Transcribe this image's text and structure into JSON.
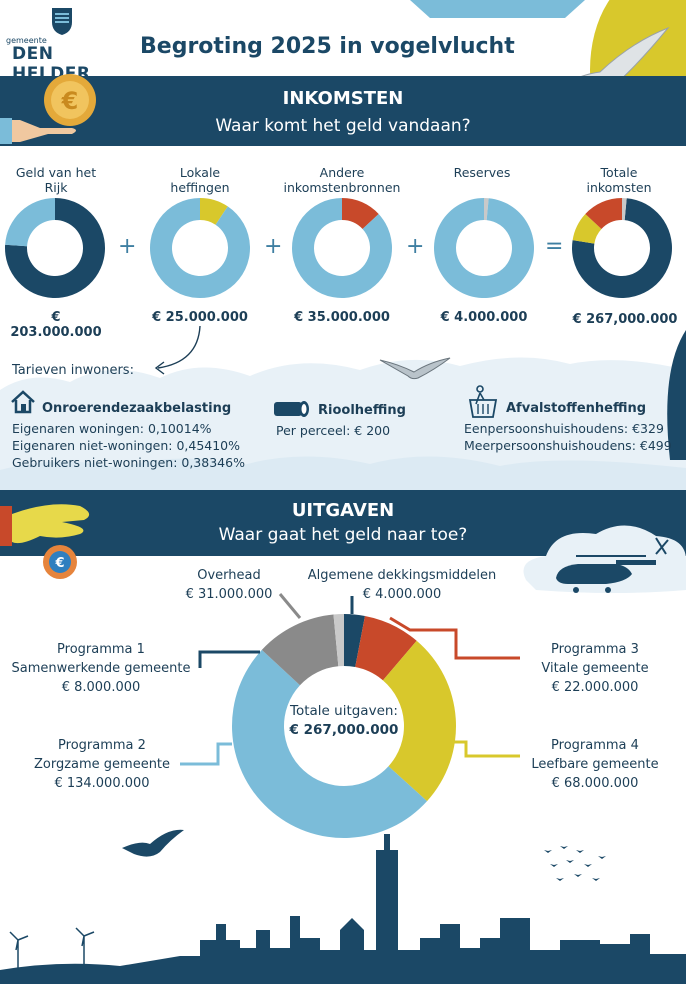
{
  "header": {
    "logo_small": "gemeente",
    "logo_big": "DEN HELDER",
    "title": "Begroting 2025 in vogelvlucht"
  },
  "income": {
    "heading": "INKOMSTEN",
    "subheading": "Waar komt het geld vandaan?",
    "items": [
      {
        "label": "Geld van het Rijk",
        "amount": "€ 203.000.000"
      },
      {
        "label": "Lokale heffingen",
        "amount": "€ 25.000.000"
      },
      {
        "label": "Andere inkomstenbronnen",
        "amount": "€ 35.000.000"
      },
      {
        "label": "Reserves",
        "amount": "€ 4.000.000"
      },
      {
        "label": "Totale inkomsten",
        "amount": "€ 267,000.000"
      }
    ],
    "ops": [
      "+",
      "+",
      "+",
      "="
    ]
  },
  "tariffs": {
    "title": "Tarieven inwoners:",
    "ozb": {
      "heading": "Onroerendezaakbelasting",
      "lines": [
        "Eigenaren woningen: 0,10014%",
        "Eigenaren niet-woningen: 0,45410%",
        "Gebruikers niet-woningen: 0,38346%"
      ]
    },
    "riool": {
      "heading": "Rioolheffing",
      "lines": [
        "Per perceel: € 200"
      ]
    },
    "afval": {
      "heading": "Afvalstoffenheffing",
      "lines": [
        "Eenpersoonshuishoudens: €329",
        "Meerpersoonshuishoudens: €499"
      ]
    }
  },
  "expenses": {
    "heading": "UITGAVEN",
    "subheading": "Waar gaat het geld naar toe?",
    "center": [
      "Totale uitgaven:",
      "€ 267,000.000"
    ],
    "labels": {
      "overhead": [
        "Overhead",
        "€ 31.000.000"
      ],
      "dekking": [
        "Algemene dekkingsmiddelen",
        "€ 4.000.000"
      ],
      "p1": [
        "Programma 1",
        "Samenwerkende gemeente",
        "€ 8.000.000"
      ],
      "p2": [
        "Programma 2",
        "Zorgzame gemeente",
        "€ 134.000.000"
      ],
      "p3": [
        "Programma 3",
        "Vitale gemeente",
        "€ 22.000.000"
      ],
      "p4": [
        "Programma 4",
        "Leefbare gemeente",
        "€ 68.000.000"
      ]
    }
  },
  "colors": {
    "navy": "#1b4866",
    "light_blue": "#7bbcd9",
    "red": "#c8492a",
    "yellow": "#d8c82c",
    "gray": "#8a8a8a",
    "light_gray": "#c9c9c9"
  },
  "chart_data": [
    {
      "type": "pie",
      "categories": [
        "Geld van het Rijk",
        "Overige"
      ],
      "values": [
        203,
        64
      ]
    },
    {
      "type": "pie",
      "categories": [
        "Lokale heffingen",
        "Overige"
      ],
      "values": [
        25,
        242
      ]
    },
    {
      "type": "pie",
      "categories": [
        "Andere inkomstenbronnen",
        "Overige"
      ],
      "values": [
        35,
        232
      ]
    },
    {
      "type": "pie",
      "categories": [
        "Reserves",
        "Overige"
      ],
      "values": [
        4,
        263
      ]
    },
    {
      "type": "pie",
      "categories": [
        "Geld van het Rijk",
        "Lokale heffingen",
        "Andere inkomstenbronnen",
        "Reserves"
      ],
      "values": [
        203,
        25,
        35,
        4
      ]
    },
    {
      "type": "pie",
      "categories": [
        "Programma 1",
        "Programma 3",
        "Programma 4",
        "Programma 2",
        "Overhead",
        "Algemene dekkingsmiddelen"
      ],
      "values": [
        8,
        22,
        68,
        134,
        31,
        4
      ]
    }
  ]
}
